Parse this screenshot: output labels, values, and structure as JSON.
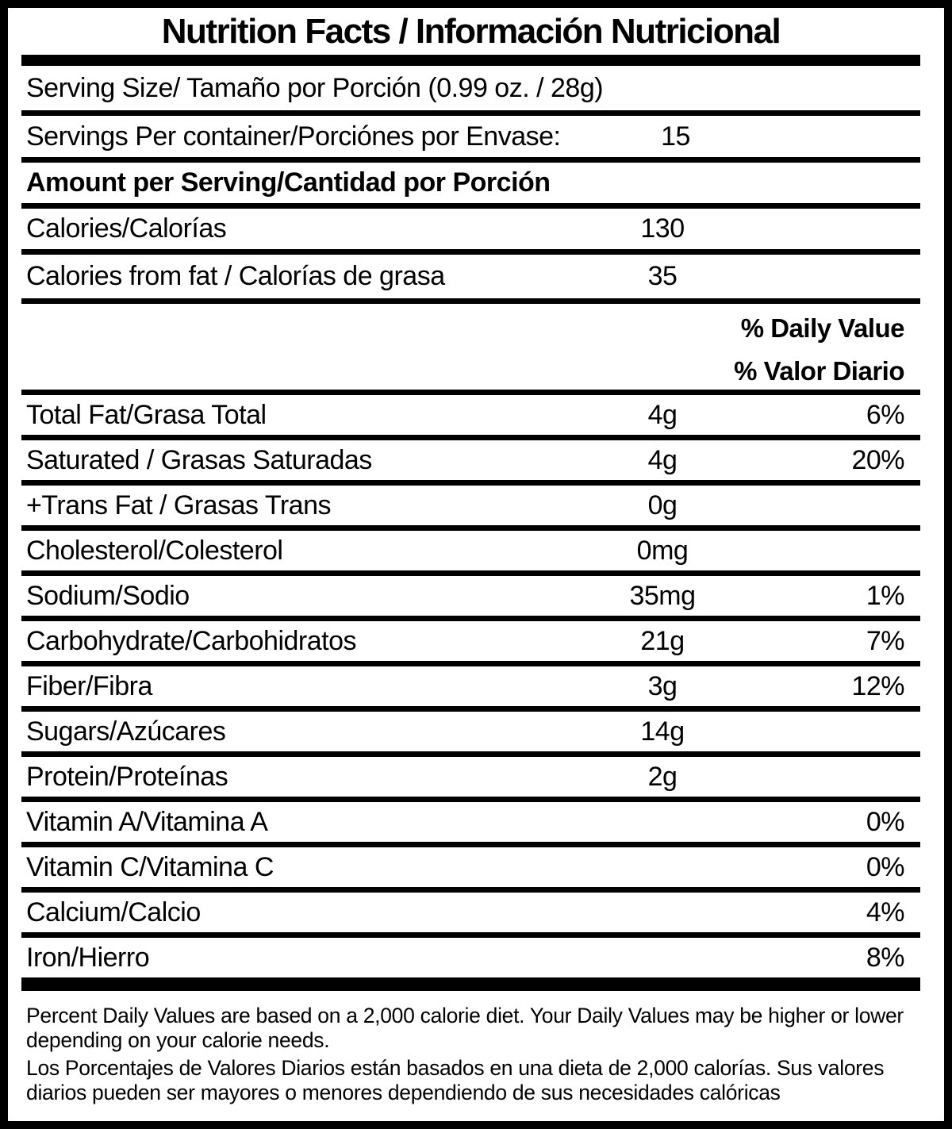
{
  "colors": {
    "text": "#000000",
    "background": "#ffffff"
  },
  "label": {
    "title": "Nutrition Facts / Información Nutricional",
    "serving_size": "Serving Size/ Tamaño por Porción  (0.99 oz. / 28g)",
    "servings_per_container": {
      "label": "Servings Per container/Porciónes por Envase:",
      "value": "15"
    },
    "amount_header": "Amount per Serving/Cantidad por Porción",
    "calorie_rows": [
      {
        "label": "Calories/Calorías",
        "amount": "130",
        "dv": ""
      },
      {
        "label": "Calories from fat / Calorías de grasa",
        "amount": "35",
        "dv": ""
      }
    ],
    "daily_value_header_en": "% Daily Value",
    "daily_value_header_es": "% Valor Diario",
    "nutrient_rows": [
      {
        "label": "Total Fat/Grasa Total",
        "amount": "4g",
        "dv": "6%"
      },
      {
        "label": "Saturated / Grasas Saturadas",
        "amount": "4g",
        "dv": "20%"
      },
      {
        "label": "+Trans Fat / Grasas Trans",
        "amount": "0g",
        "dv": ""
      },
      {
        "label": "Cholesterol/Colesterol",
        "amount": "0mg",
        "dv": ""
      },
      {
        "label": "Sodium/Sodio",
        "amount": "35mg",
        "dv": "1%"
      },
      {
        "label": "Carbohydrate/Carbohidratos",
        "amount": "21g",
        "dv": "7%"
      },
      {
        "label": "Fiber/Fibra",
        "amount": "3g",
        "dv": "12%"
      },
      {
        "label": "Sugars/Azúcares",
        "amount": "14g",
        "dv": ""
      },
      {
        "label": "Protein/Proteínas",
        "amount": "2g",
        "dv": ""
      },
      {
        "label": "Vitamin A/Vitamina A",
        "amount": "",
        "dv": "0%"
      },
      {
        "label": "Vitamin C/Vitamina C",
        "amount": "",
        "dv": "0%"
      },
      {
        "label": "Calcium/Calcio",
        "amount": "",
        "dv": "4%"
      },
      {
        "label": "Iron/Hierro",
        "amount": "",
        "dv": "8%"
      }
    ],
    "footnote_en": "Percent Daily Values are based on a 2,000 calorie diet. Your Daily Values may be higher or lower depending on your calorie needs.",
    "footnote_es": "Los Porcentajes de Valores Diarios están basados en una dieta de 2,000 calorías. Sus valores diarios pueden ser mayores o menores dependiendo de sus necesidades calóricas"
  }
}
